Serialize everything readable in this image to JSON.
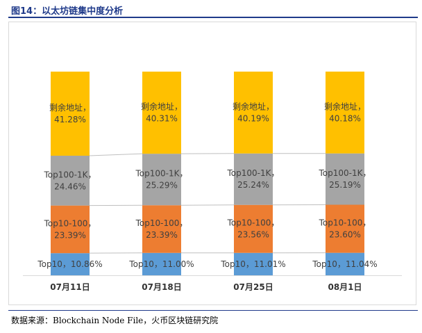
{
  "figure_title": "图14：以太坊链集中度分析",
  "source_text": "数据来源：Blockchain Node File，火币区块链研究院",
  "chart_data": {
    "type": "bar",
    "stacked": true,
    "percent_stacked": true,
    "categories": [
      "07月11日",
      "07月18日",
      "07月25日",
      "08月1日"
    ],
    "series": [
      {
        "name": "Top10",
        "values": [
          10.86,
          11.0,
          11.01,
          11.04
        ],
        "labels": [
          "Top10，10.86%",
          "Top10，11.00%",
          "Top10，11.01%",
          "Top10，11.04%"
        ],
        "color": "#5b9bd5"
      },
      {
        "name": "Top10-100",
        "values": [
          23.39,
          23.39,
          23.56,
          23.6
        ],
        "labels": [
          "Top10-100，\n23.39%",
          "Top10-100，\n23.39%",
          "Top10-100，\n23.56%",
          "Top10-100，\n23.60%"
        ],
        "color": "#ed7d31"
      },
      {
        "name": "Top100-1K",
        "values": [
          24.46,
          25.29,
          25.24,
          25.19
        ],
        "labels": [
          "Top100-1K，\n24.46%",
          "Top100-1K，\n25.29%",
          "Top100-1K，\n25.24%",
          "Top100-1K，\n25.19%"
        ],
        "color": "#a5a5a5"
      },
      {
        "name": "剩余地址",
        "values": [
          41.28,
          40.31,
          40.19,
          40.18
        ],
        "labels": [
          "剩余地址，\n41.28%",
          "剩余地址，\n40.31%",
          "剩余地址，\n40.19%",
          "剩余地址，\n40.18%"
        ],
        "color": "#ffc000"
      }
    ],
    "label_color": "#404040",
    "series_lines": true,
    "gridlines": false,
    "legend": "none",
    "ylim": [
      0,
      100
    ]
  }
}
